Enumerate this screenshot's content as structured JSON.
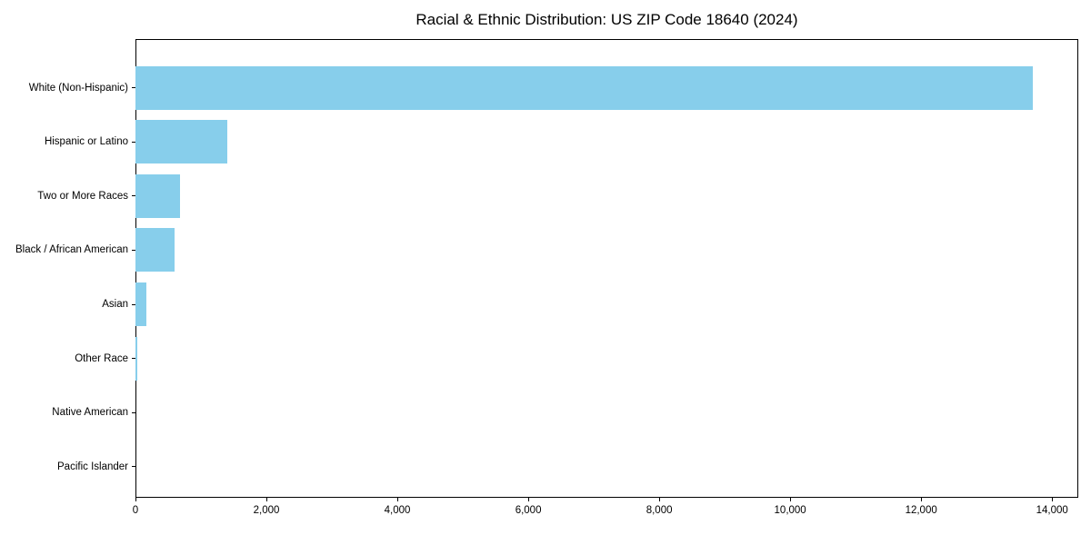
{
  "chart_data": {
    "type": "bar",
    "orientation": "horizontal",
    "title": "Racial & Ethnic Distribution: US ZIP Code 18640 (2024)",
    "categories": [
      "White (Non-Hispanic)",
      "Hispanic or Latino",
      "Two or More Races",
      "Black / African American",
      "Asian",
      "Other Race",
      "Native American",
      "Pacific Islander"
    ],
    "values": [
      13700,
      1400,
      680,
      600,
      170,
      25,
      0,
      0
    ],
    "xlabel": "",
    "ylabel": "",
    "xlim": [
      0,
      14400
    ],
    "x_ticks": [
      0,
      2000,
      4000,
      6000,
      8000,
      10000,
      12000,
      14000
    ],
    "x_tick_labels": [
      "0",
      "2,000",
      "4,000",
      "6,000",
      "8,000",
      "10,000",
      "12,000",
      "14,000"
    ],
    "bar_color": "#87CEEB",
    "frame_color": "#000000",
    "background_color": "#ffffff",
    "grid": false,
    "legend": null,
    "value_labels_shown": false
  }
}
